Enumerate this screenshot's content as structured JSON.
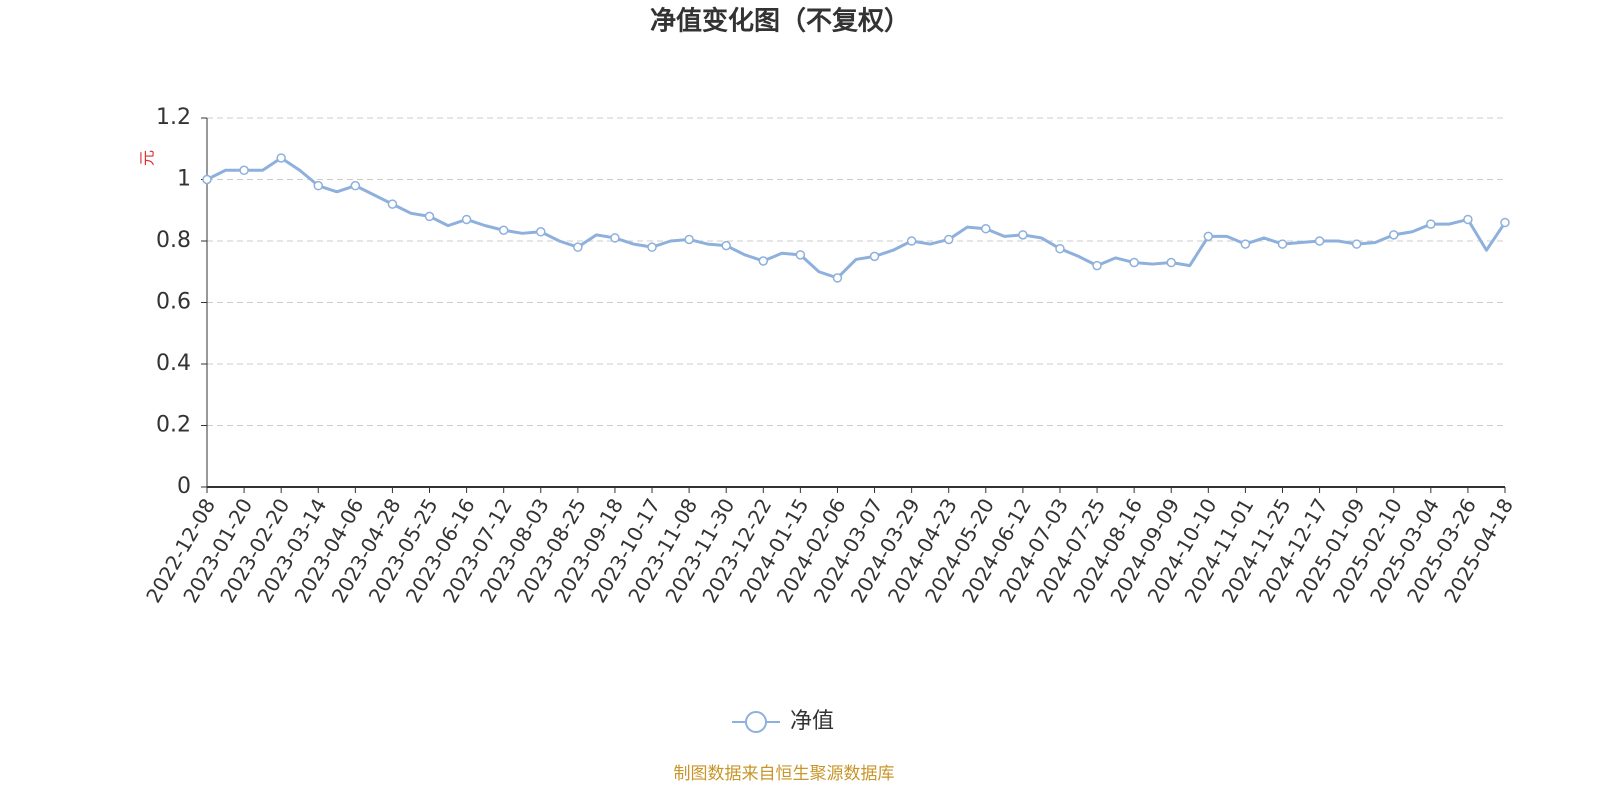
{
  "chart_data": {
    "type": "line",
    "title": "净值变化图（不复权）",
    "y_label": "元",
    "source": "制图数据来自恒生聚源数据库",
    "categories": [
      "2022-12-08",
      null,
      "2023-01-20",
      null,
      "2023-02-20",
      null,
      "2023-03-14",
      null,
      "2023-04-06",
      null,
      "2023-04-28",
      null,
      "2023-05-25",
      null,
      "2023-06-16",
      null,
      "2023-07-12",
      null,
      "2023-08-03",
      null,
      "2023-08-25",
      null,
      "2023-09-18",
      null,
      "2023-10-17",
      null,
      "2023-11-08",
      null,
      "2023-11-30",
      null,
      "2023-12-22",
      null,
      "2024-01-15",
      null,
      "2024-02-06",
      null,
      "2024-03-07",
      null,
      "2024-03-29",
      null,
      "2024-04-23",
      null,
      "2024-05-20",
      null,
      "2024-06-12",
      null,
      "2024-07-03",
      null,
      "2024-07-25",
      null,
      "2024-08-16",
      null,
      "2024-09-09",
      null,
      "2024-10-10",
      null,
      "2024-11-01",
      null,
      "2024-11-25",
      null,
      "2024-12-17",
      null,
      "2025-01-09",
      null,
      "2025-02-10",
      null,
      "2025-03-04",
      null,
      "2025-03-26",
      null,
      "2025-04-18"
    ],
    "series": [
      {
        "name": "净值",
        "color": "#8eb0dc",
        "values": [
          1.0,
          1.03,
          1.03,
          1.03,
          1.07,
          1.03,
          0.98,
          0.96,
          0.98,
          0.95,
          0.92,
          0.89,
          0.88,
          0.85,
          0.87,
          0.85,
          0.835,
          0.825,
          0.83,
          0.8,
          0.78,
          0.82,
          0.81,
          0.79,
          0.78,
          0.8,
          0.805,
          0.79,
          0.785,
          0.755,
          0.735,
          0.76,
          0.755,
          0.7,
          0.68,
          0.74,
          0.75,
          0.77,
          0.8,
          0.79,
          0.805,
          0.845,
          0.84,
          0.815,
          0.82,
          0.81,
          0.775,
          0.75,
          0.72,
          0.745,
          0.73,
          0.725,
          0.73,
          0.72,
          0.815,
          0.815,
          0.79,
          0.81,
          0.79,
          0.795,
          0.8,
          0.8,
          0.79,
          0.795,
          0.82,
          0.83,
          0.855,
          0.855,
          0.87,
          0.77,
          0.86
        ]
      }
    ],
    "ylim": [
      0,
      1.2
    ],
    "yticks": [
      0,
      0.2,
      0.4,
      0.6,
      0.8,
      1,
      1.2
    ],
    "grid": true
  }
}
